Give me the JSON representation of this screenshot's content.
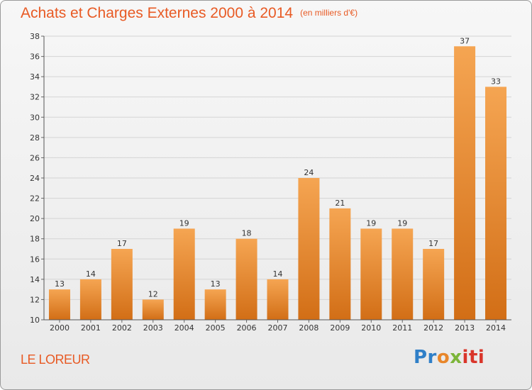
{
  "header": {
    "title": "Achats et Charges Externes 2000 à 2014",
    "subtitle": "(en milliers d'€)"
  },
  "footer": {
    "town": "LE LOREUR",
    "logo_parts": [
      "Pr",
      "o",
      "x",
      "iti"
    ]
  },
  "colors": {
    "bar_light": "#f5a552",
    "bar_dark": "#d26e16",
    "title": "#e85a24"
  },
  "chart_data": {
    "type": "bar",
    "title": "Achats et Charges Externes 2000 à 2014",
    "subtitle": "(en milliers d'€)",
    "categories": [
      "2000",
      "2001",
      "2002",
      "2003",
      "2004",
      "2005",
      "2006",
      "2007",
      "2008",
      "2009",
      "2010",
      "2011",
      "2012",
      "2013",
      "2014"
    ],
    "values": [
      13,
      14,
      17,
      12,
      19,
      13,
      18,
      14,
      24,
      21,
      19,
      19,
      17,
      37,
      33
    ],
    "xlabel": "",
    "ylabel": "",
    "ylim": [
      10,
      38
    ],
    "yticks": [
      10,
      12,
      14,
      16,
      18,
      20,
      22,
      24,
      26,
      28,
      30,
      32,
      34,
      36,
      38
    ],
    "grid": true,
    "legend": "none"
  }
}
